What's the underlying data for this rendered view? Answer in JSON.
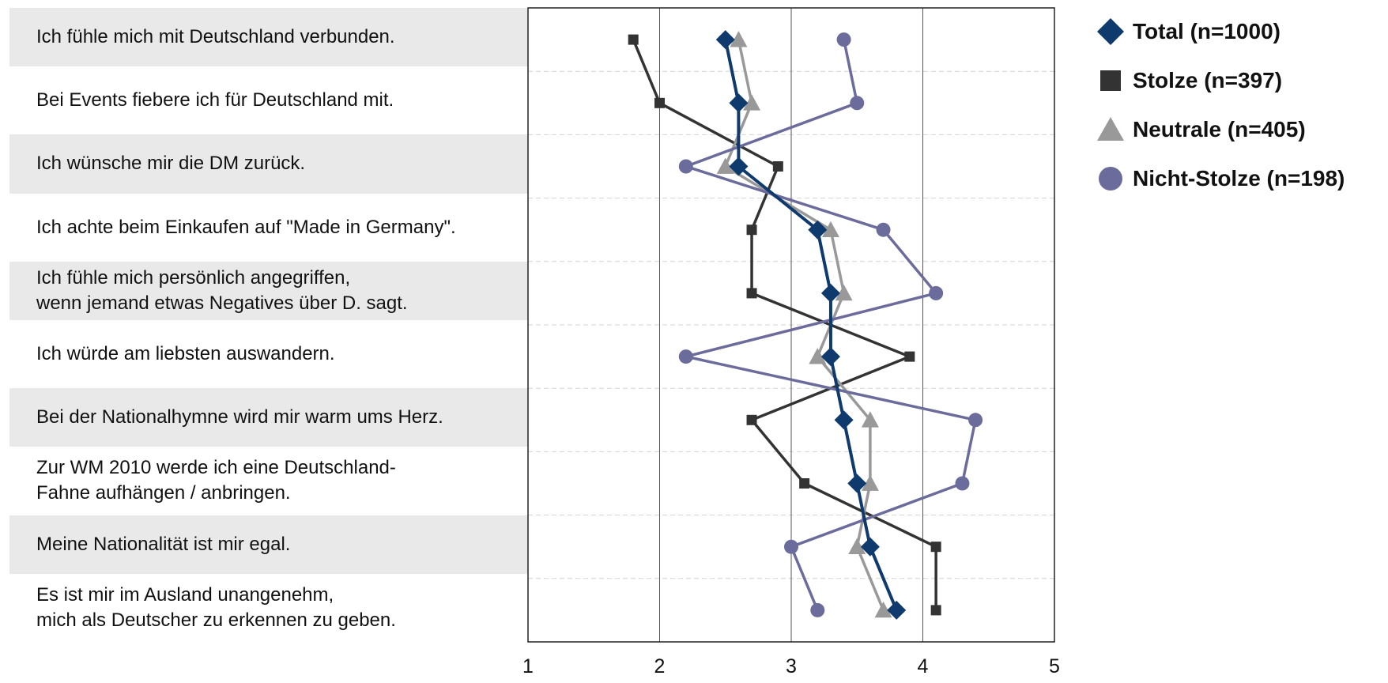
{
  "chart_data": {
    "type": "line",
    "orientation": "vertical-categories",
    "categories": [
      "Ich fühle mich mit Deutschland verbunden.",
      "Bei Events fiebere ich für Deutschland mit.",
      "Ich wünsche mir die DM zurück.",
      "Ich achte beim Einkaufen auf \"Made in Germany\".",
      "Ich fühle mich persönlich angegriffen,\nwenn jemand etwas Negatives über D. sagt.",
      "Ich würde am liebsten auswandern.",
      "Bei der Nationalhymne wird mir warm ums Herz.",
      "Zur WM 2010 werde ich eine Deutschland-\nFahne aufhängen / anbringen.",
      "Meine Nationalität ist mir egal.",
      "Es ist mir im Ausland unangenehm,\nmich als Deutscher zu erkennen zu geben."
    ],
    "xlim": [
      1,
      5
    ],
    "xticks": [
      "1",
      "2",
      "3",
      "4",
      "5"
    ],
    "grid": true,
    "legend_position": "top-right",
    "series": [
      {
        "name": "Total (n=1000)",
        "marker": "diamond",
        "color": "#0f3a6e",
        "values": [
          2.5,
          2.6,
          2.6,
          3.2,
          3.3,
          3.3,
          3.4,
          3.5,
          3.6,
          3.8
        ]
      },
      {
        "name": "Stolze (n=397)",
        "marker": "square",
        "color": "#333333",
        "values": [
          1.8,
          2.0,
          2.9,
          2.7,
          2.7,
          3.9,
          2.7,
          3.1,
          4.1,
          4.1
        ]
      },
      {
        "name": "Neutrale (n=405)",
        "marker": "triangle",
        "color": "#999999",
        "values": [
          2.6,
          2.7,
          2.5,
          3.3,
          3.4,
          3.2,
          3.6,
          3.6,
          3.5,
          3.7
        ]
      },
      {
        "name": "Nicht-Stolze (n=198)",
        "marker": "circle",
        "color": "#6b6b9c",
        "values": [
          3.4,
          3.5,
          2.2,
          3.7,
          4.1,
          2.2,
          4.4,
          4.3,
          3.0,
          3.2
        ]
      }
    ]
  }
}
